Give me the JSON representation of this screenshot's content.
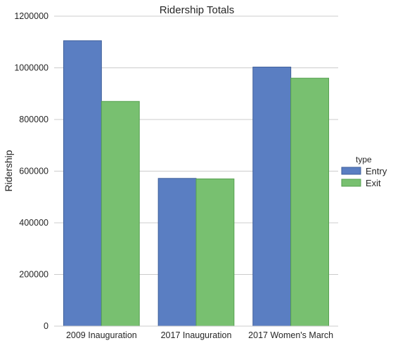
{
  "chart_data": {
    "type": "bar",
    "title": "Ridership Totals",
    "xlabel": "",
    "ylabel": "Ridership",
    "categories": [
      "2009 Inauguration",
      "2017 Inauguration",
      "2017 Women's March"
    ],
    "series": [
      {
        "name": "Entry",
        "color": "#5a7ec2",
        "values": [
          1105000,
          572000,
          1003000
        ]
      },
      {
        "name": "Exit",
        "color": "#78c070",
        "values": [
          870000,
          570000,
          960000
        ]
      }
    ],
    "ylim": [
      0,
      1200000
    ],
    "yticks": [
      "0",
      "200000",
      "400000",
      "600000",
      "800000",
      "1000000",
      "1200000"
    ],
    "ytick_values": [
      0,
      200000,
      400000,
      600000,
      800000,
      1000000,
      1200000
    ],
    "grid": "horizontal",
    "legend": {
      "title": "type",
      "placement": "right"
    },
    "colors": {
      "gridline": "#cccccc",
      "entry_edge": "#3f5f9a",
      "exit_edge": "#56a050"
    }
  }
}
